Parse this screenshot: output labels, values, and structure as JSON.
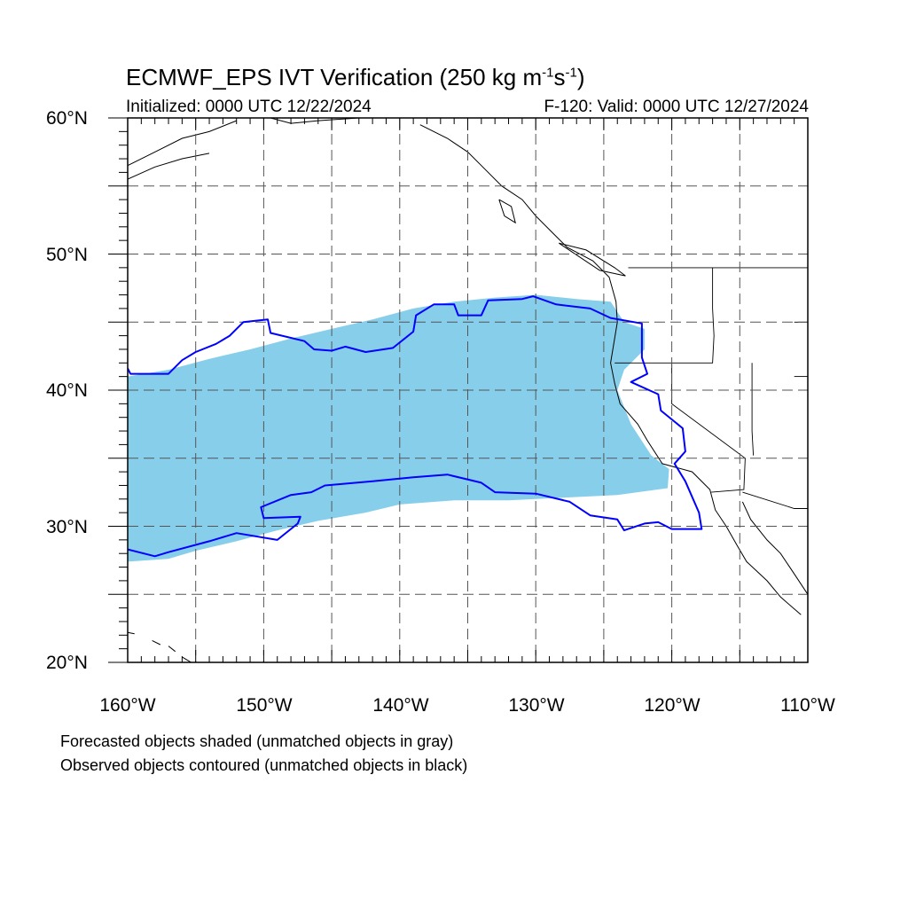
{
  "title": {
    "text": "ECMWF_EPS IVT Verification (250 kg m",
    "exp1": "-1",
    "mid": "s",
    "exp2": "-1",
    "close": ")"
  },
  "subtitle_left": "Initialized: 0000 UTC 12/22/2024",
  "subtitle_right": "F-120: Valid: 0000 UTC 12/27/2024",
  "lat_labels": [
    "60°N",
    "50°N",
    "40°N",
    "30°N",
    "20°N"
  ],
  "lon_labels": [
    "160°W",
    "150°W",
    "140°W",
    "130°W",
    "120°W",
    "110°W"
  ],
  "notes": [
    "Forecasted objects shaded (unmatched objects in gray)",
    "Observed objects contoured (unmatched objects in black)"
  ],
  "colors": {
    "forecast_fill": "#87CEEB",
    "observed_contour": "#0000FF",
    "coastline": "#000000",
    "grid": "#555555"
  },
  "map_extent": {
    "lon": [
      -160,
      -110
    ],
    "lat": [
      20,
      60
    ]
  },
  "grid": {
    "lon_lines": [
      -155,
      -150,
      -145,
      -140,
      -135,
      -130,
      -125,
      -120,
      -115
    ],
    "lat_lines": [
      25,
      30,
      35,
      40,
      45,
      50,
      55
    ],
    "style": "dashed"
  },
  "forecast_object": [
    [
      -160,
      41
    ],
    [
      -157,
      41.5
    ],
    [
      -154,
      42.3
    ],
    [
      -151,
      43
    ],
    [
      -148,
      43.8
    ],
    [
      -145,
      44.5
    ],
    [
      -142,
      45.2
    ],
    [
      -139,
      46
    ],
    [
      -136,
      46.5
    ],
    [
      -133,
      46.8
    ],
    [
      -130,
      47
    ],
    [
      -127,
      46.7
    ],
    [
      -124.5,
      46.5
    ],
    [
      -123.5,
      45
    ],
    [
      -122,
      44.5
    ],
    [
      -122,
      43
    ],
    [
      -123.5,
      41.5
    ],
    [
      -124,
      40
    ],
    [
      -123,
      37.5
    ],
    [
      -121.5,
      35.2
    ],
    [
      -120.2,
      34.2
    ],
    [
      -120.3,
      32.8
    ],
    [
      -124,
      32.3
    ],
    [
      -128,
      32.1
    ],
    [
      -132,
      31.9
    ],
    [
      -136,
      31.9
    ],
    [
      -140,
      31.6
    ],
    [
      -142.5,
      31
    ],
    [
      -146,
      30.4
    ],
    [
      -149,
      29.7
    ],
    [
      -152,
      28.9
    ],
    [
      -155,
      28.2
    ],
    [
      -157,
      27.6
    ],
    [
      -160,
      27.4
    ]
  ],
  "observed_object": [
    [
      -160,
      41.6
    ],
    [
      -159.8,
      41.2
    ],
    [
      -157,
      41.2
    ],
    [
      -156,
      42.2
    ],
    [
      -155,
      42.8
    ],
    [
      -153.5,
      43.4
    ],
    [
      -152.5,
      44
    ],
    [
      -151.5,
      45
    ],
    [
      -149.7,
      45.2
    ],
    [
      -149.5,
      44.2
    ],
    [
      -147,
      43.6
    ],
    [
      -146.3,
      43
    ],
    [
      -145,
      42.9
    ],
    [
      -144,
      43.2
    ],
    [
      -142.5,
      42.8
    ],
    [
      -140.5,
      43.1
    ],
    [
      -139,
      44.3
    ],
    [
      -138.8,
      45.5
    ],
    [
      -137.5,
      46.3
    ],
    [
      -136,
      46.3
    ],
    [
      -135.7,
      45.5
    ],
    [
      -134,
      45.5
    ],
    [
      -133.5,
      46.6
    ],
    [
      -131,
      46.7
    ],
    [
      -130.2,
      46.9
    ],
    [
      -128.5,
      46.3
    ],
    [
      -126,
      46
    ],
    [
      -124.5,
      45.3
    ],
    [
      -122.2,
      44.9
    ],
    [
      -122.2,
      42.4
    ],
    [
      -121.8,
      41.2
    ],
    [
      -123,
      40.6
    ],
    [
      -121,
      39.7
    ],
    [
      -120.8,
      38.5
    ],
    [
      -119.2,
      37.2
    ],
    [
      -119,
      35.5
    ],
    [
      -119.8,
      34.6
    ],
    [
      -119,
      33.3
    ],
    [
      -118,
      31
    ],
    [
      -117.8,
      29.8
    ],
    [
      -120,
      29.8
    ],
    [
      -121,
      30.3
    ],
    [
      -122,
      30.2
    ],
    [
      -123.5,
      29.7
    ],
    [
      -124,
      30.5
    ],
    [
      -126,
      30.8
    ],
    [
      -127.5,
      31.8
    ],
    [
      -130,
      32.4
    ],
    [
      -133,
      32.5
    ],
    [
      -134,
      33.2
    ],
    [
      -136.5,
      33.8
    ],
    [
      -139,
      33.6
    ],
    [
      -142,
      33.3
    ],
    [
      -144.3,
      33.1
    ],
    [
      -145.5,
      33
    ],
    [
      -146.5,
      32.5
    ],
    [
      -148,
      32.3
    ],
    [
      -150.2,
      31.4
    ],
    [
      -150,
      30.6
    ],
    [
      -147.3,
      30.7
    ],
    [
      -147.5,
      30.2
    ],
    [
      -149,
      29
    ],
    [
      -152,
      29.5
    ],
    [
      -154,
      28.9
    ],
    [
      -157,
      28.1
    ],
    [
      -158,
      27.8
    ],
    [
      -160,
      28.3
    ]
  ],
  "coastlines": [
    [
      [
        -160,
        56.5
      ],
      [
        -158,
        57.5
      ],
      [
        -156,
        58.5
      ],
      [
        -154,
        59
      ],
      [
        -152,
        59.8
      ]
    ],
    [
      [
        -160,
        55.5
      ],
      [
        -158,
        56.4
      ],
      [
        -156,
        57
      ],
      [
        -154,
        57.4
      ]
    ],
    [
      [
        -149.5,
        60
      ],
      [
        -148,
        59.6
      ],
      [
        -146,
        59.8
      ],
      [
        -143,
        60
      ]
    ],
    [
      [
        -138.5,
        59.5
      ],
      [
        -136.5,
        58.5
      ],
      [
        -135,
        57.5
      ],
      [
        -134,
        56.5
      ],
      [
        -132.5,
        55
      ],
      [
        -131,
        54
      ],
      [
        -130,
        52.8
      ],
      [
        -128.7,
        51.5
      ],
      [
        -127.7,
        50.5
      ],
      [
        -125.8,
        49.5
      ],
      [
        -124.6,
        48.3
      ],
      [
        -124.1,
        46.5
      ],
      [
        -124,
        45
      ],
      [
        -124.5,
        42
      ],
      [
        -124.2,
        40.5
      ],
      [
        -123.8,
        39
      ],
      [
        -122.5,
        37.5
      ],
      [
        -121.8,
        36.3
      ],
      [
        -120.7,
        34.6
      ],
      [
        -118.5,
        34
      ],
      [
        -117.2,
        32.7
      ],
      [
        -116.8,
        31.2
      ],
      [
        -116,
        30
      ],
      [
        -115.2,
        28.6
      ],
      [
        -114.5,
        27.4
      ],
      [
        -113,
        26
      ],
      [
        -112,
        24.8
      ],
      [
        -110.5,
        23.5
      ]
    ],
    [
      [
        -114.8,
        31.8
      ],
      [
        -114.2,
        30.5
      ],
      [
        -113,
        29
      ],
      [
        -112,
        28
      ],
      [
        -111,
        26.5
      ],
      [
        -110,
        25
      ]
    ],
    [
      [
        -132.7,
        54
      ],
      [
        -131.8,
        53.5
      ],
      [
        -131.5,
        52.3
      ],
      [
        -132.3,
        52.8
      ],
      [
        -132.7,
        54
      ]
    ],
    [
      [
        -128.3,
        50.8
      ],
      [
        -126.3,
        50.3
      ],
      [
        -124.2,
        49
      ],
      [
        -123.4,
        48.4
      ],
      [
        -125.3,
        48.8
      ],
      [
        -128.3,
        50.8
      ]
    ],
    [
      [
        -160,
        22.2
      ],
      [
        -159.5,
        22.1
      ]
    ],
    [
      [
        -158.2,
        21.6
      ],
      [
        -157.6,
        21.3
      ]
    ],
    [
      [
        -157,
        21.2
      ],
      [
        -156.5,
        20.8
      ]
    ],
    [
      [
        -156,
        20.4
      ],
      [
        -155,
        19.8
      ]
    ]
  ],
  "boundaries": [
    [
      [
        -141,
        60
      ],
      [
        -141,
        59.8
      ]
    ],
    [
      [
        -123.2,
        49
      ],
      [
        -110,
        49
      ]
    ],
    [
      [
        -117,
        49
      ],
      [
        -117,
        46
      ],
      [
        -116.9,
        44
      ],
      [
        -117,
        42
      ],
      [
        -124.2,
        42
      ]
    ],
    [
      [
        -120,
        42
      ],
      [
        -120,
        39
      ],
      [
        -114.6,
        35
      ],
      [
        -114.7,
        32.7
      ],
      [
        -117.1,
        32.5
      ]
    ],
    [
      [
        -114.1,
        42
      ],
      [
        -114.1,
        37
      ],
      [
        -114,
        35.2
      ]
    ],
    [
      [
        -111,
        45
      ],
      [
        -110,
        45
      ]
    ],
    [
      [
        -111,
        41
      ],
      [
        -110,
        41
      ]
    ],
    [
      [
        -114.8,
        32.5
      ],
      [
        -111,
        31.3
      ],
      [
        -110,
        31.3
      ]
    ]
  ]
}
